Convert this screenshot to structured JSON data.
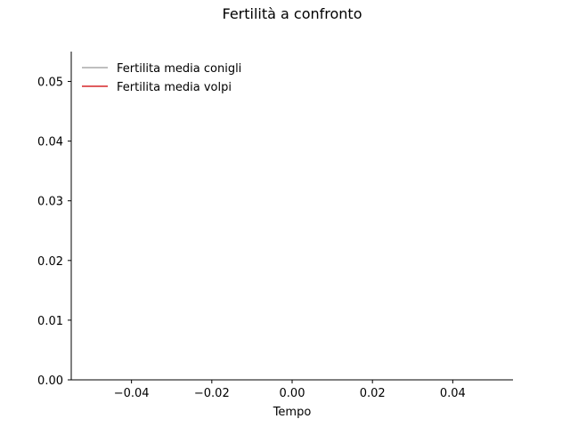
{
  "chart_data": {
    "type": "line",
    "title": "Fertilità a confronto",
    "xlabel": "Tempo",
    "ylabel": "",
    "xlim": [
      -0.055,
      0.055
    ],
    "ylim": [
      0.0,
      0.055
    ],
    "xticks": [
      -0.04,
      -0.02,
      0.0,
      0.02,
      0.04
    ],
    "xtick_labels": [
      "−0.04",
      "−0.02",
      "0.00",
      "0.02",
      "0.04"
    ],
    "yticks": [
      0.0,
      0.01,
      0.02,
      0.03,
      0.04,
      0.05
    ],
    "ytick_labels": [
      "0.00",
      "0.01",
      "0.02",
      "0.03",
      "0.04",
      "0.05"
    ],
    "grid": false,
    "legend_position": "top-left",
    "series": [
      {
        "name": "Fertilita media conigli",
        "color": "#aaaaaa",
        "x": [],
        "y": []
      },
      {
        "name": "Fertilita media volpi",
        "color": "#d62728",
        "x": [],
        "y": []
      }
    ]
  }
}
